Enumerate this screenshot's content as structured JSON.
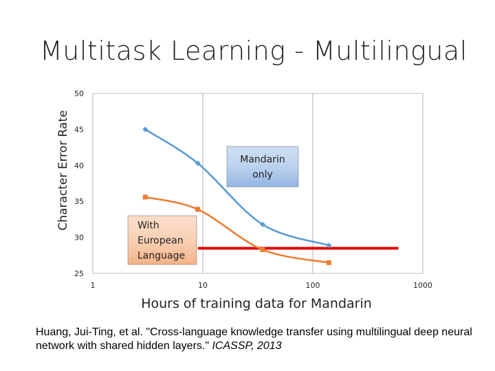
{
  "slide": {
    "title": "Multitask Learning - Multilingual",
    "citation_main": "Huang, Jui-Ting, et al. \"Cross-language knowledge transfer using multilingual deep neural network with shared hidden layers.\" ",
    "citation_venue": "ICASSP, 2013"
  },
  "chart_data": {
    "type": "line",
    "xlabel": "Hours of training data for Mandarin",
    "ylabel": "Character Error Rate",
    "xscale": "log",
    "xlim": [
      1,
      1000
    ],
    "ylim": [
      25,
      50
    ],
    "xticks": [
      "1",
      "10",
      "100",
      "1000"
    ],
    "yticks": [
      "25",
      "30",
      "35",
      "40",
      "45",
      "50"
    ],
    "grid": "vertical",
    "series": [
      {
        "name": "Mandarin only",
        "color": "#5b9bd5",
        "marker": "diamond",
        "x": [
          3,
          9,
          35,
          140
        ],
        "y": [
          45,
          40.3,
          31.8,
          28.9
        ]
      },
      {
        "name": "With European Language",
        "color": "#ed7d31",
        "marker": "square",
        "x": [
          3,
          9,
          35,
          140
        ],
        "y": [
          35.6,
          33.9,
          28.3,
          26.5
        ]
      }
    ],
    "reference_line": {
      "x": [
        9,
        600
      ],
      "y": 28.5,
      "color": "#e00000"
    },
    "annotations": [
      {
        "text": "Mandarin only",
        "lines": [
          "Mandarin",
          "only"
        ],
        "color": "#8fb4e3"
      },
      {
        "text": "With European Language",
        "lines": [
          "With",
          "European",
          "Language"
        ],
        "color": "#f4b183"
      }
    ]
  }
}
